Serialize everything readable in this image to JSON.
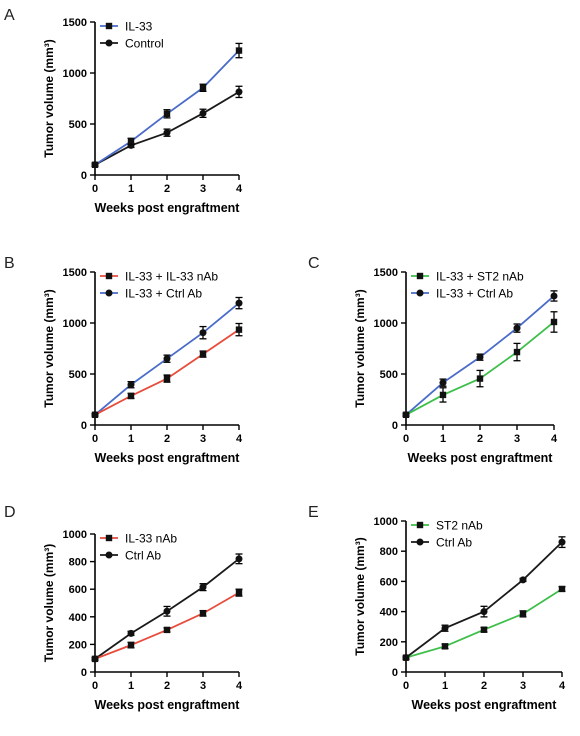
{
  "chart_data": [
    {
      "panel": "A",
      "type": "line",
      "x": [
        0,
        1,
        2,
        3,
        4
      ],
      "xlim": [
        0,
        4
      ],
      "ylim": [
        0,
        1500
      ],
      "xticks": [
        "0",
        "1",
        "2",
        "3",
        "4"
      ],
      "yticks": [
        "0",
        "500",
        "1000",
        "1500"
      ],
      "xlabel": "Weeks post engraftment",
      "ylabel": "Tumor volume (mm³)",
      "legend_position": "top-left",
      "series": [
        {
          "name": "IL-33",
          "color": "#4a6cc9",
          "marker": "square",
          "values": [
            100,
            330,
            600,
            855,
            1220
          ],
          "errors": [
            15,
            30,
            40,
            35,
            70
          ]
        },
        {
          "name": "Control",
          "color": "#1a1a1a",
          "marker": "circle",
          "values": [
            100,
            290,
            415,
            605,
            815
          ],
          "errors": [
            15,
            20,
            35,
            40,
            55
          ]
        }
      ]
    },
    {
      "panel": "B",
      "type": "line",
      "x": [
        0,
        1,
        2,
        3,
        4
      ],
      "xlim": [
        0,
        4
      ],
      "ylim": [
        0,
        1500
      ],
      "xticks": [
        "0",
        "1",
        "2",
        "3",
        "4"
      ],
      "yticks": [
        "0",
        "500",
        "1000",
        "1500"
      ],
      "xlabel": "Weeks post engraftment",
      "ylabel": "Tumor volume (mm³)",
      "legend_position": "top-left",
      "series": [
        {
          "name": "IL-33 + IL-33 nAb",
          "color": "#e84c3c",
          "marker": "square",
          "values": [
            100,
            285,
            455,
            695,
            935
          ],
          "errors": [
            12,
            25,
            35,
            30,
            60
          ]
        },
        {
          "name": "IL-33 + Ctrl Ab",
          "color": "#4a6cc9",
          "marker": "circle",
          "values": [
            100,
            395,
            650,
            905,
            1195
          ],
          "errors": [
            12,
            30,
            35,
            60,
            55
          ]
        }
      ]
    },
    {
      "panel": "C",
      "type": "line",
      "x": [
        0,
        1,
        2,
        3,
        4
      ],
      "xlim": [
        0,
        4
      ],
      "ylim": [
        0,
        1500
      ],
      "xticks": [
        "0",
        "1",
        "2",
        "3",
        "4"
      ],
      "yticks": [
        "0",
        "500",
        "1000",
        "1500"
      ],
      "xlabel": "Weeks post engraftment",
      "ylabel": "Tumor volume (mm³)",
      "legend_position": "top-left",
      "series": [
        {
          "name": "IL-33 + ST2 nAb",
          "color": "#3dbf4a",
          "marker": "square",
          "values": [
            100,
            295,
            455,
            715,
            1010
          ],
          "errors": [
            15,
            70,
            80,
            85,
            100
          ]
        },
        {
          "name": "IL-33 + Ctrl Ab",
          "color": "#4a6cc9",
          "marker": "circle",
          "values": [
            100,
            415,
            665,
            950,
            1265
          ],
          "errors": [
            12,
            35,
            30,
            40,
            50
          ]
        }
      ]
    },
    {
      "panel": "D",
      "type": "line",
      "x": [
        0,
        1,
        2,
        3,
        4
      ],
      "xlim": [
        0,
        4
      ],
      "ylim": [
        0,
        1000
      ],
      "xticks": [
        "0",
        "1",
        "2",
        "3",
        "4"
      ],
      "yticks": [
        "0",
        "200",
        "400",
        "600",
        "800",
        "1000"
      ],
      "xlabel": "Weeks post engraftment",
      "ylabel": "Tumor volume (mm³)",
      "legend_position": "top-left",
      "series": [
        {
          "name": "IL-33 nAb",
          "color": "#e84c3c",
          "marker": "square",
          "values": [
            95,
            195,
            305,
            425,
            575
          ],
          "errors": [
            10,
            20,
            15,
            20,
            25
          ]
        },
        {
          "name": "Ctrl Ab",
          "color": "#1a1a1a",
          "marker": "circle",
          "values": [
            95,
            280,
            440,
            615,
            820
          ],
          "errors": [
            10,
            15,
            35,
            25,
            35
          ]
        }
      ]
    },
    {
      "panel": "E",
      "type": "line",
      "x": [
        0,
        1,
        2,
        3,
        4
      ],
      "xlim": [
        0,
        4
      ],
      "ylim": [
        0,
        1000
      ],
      "xticks": [
        "0",
        "1",
        "2",
        "3",
        "4"
      ],
      "yticks": [
        "0",
        "200",
        "400",
        "600",
        "800",
        "1000"
      ],
      "xlabel": "Weeks post engraftment",
      "ylabel": "Tumor volume (mm³)",
      "legend_position": "top-left",
      "series": [
        {
          "name": "ST2 nAb",
          "color": "#3dbf4a",
          "marker": "square",
          "values": [
            95,
            170,
            280,
            385,
            550
          ],
          "errors": [
            10,
            15,
            15,
            20,
            15
          ]
        },
        {
          "name": "Ctrl Ab",
          "color": "#1a1a1a",
          "marker": "circle",
          "values": [
            95,
            290,
            400,
            610,
            860
          ],
          "errors": [
            10,
            20,
            35,
            10,
            35
          ]
        }
      ]
    }
  ]
}
